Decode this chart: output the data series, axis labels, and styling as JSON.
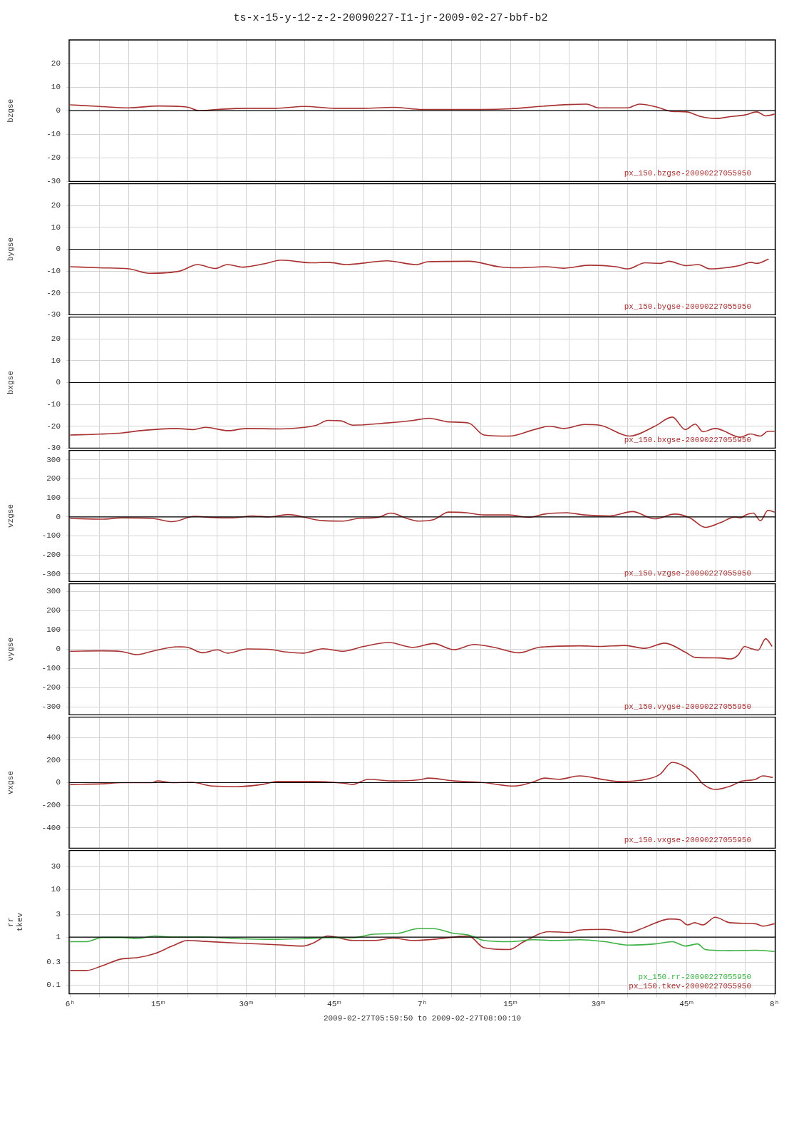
{
  "chart_data": [
    {
      "type": "line",
      "title": "ts-x-15-y-12-z-2-20090227-I1-jr-2009-02-27-bbf-b2",
      "ylabel": "bzgse",
      "xlim": [
        "2009-02-27T05:59:50",
        "2009-02-27T08:00:10"
      ],
      "ylim": [
        -30,
        30
      ],
      "yticks": [
        -30,
        -20,
        -10,
        0,
        10,
        20
      ],
      "grid": true,
      "legend": "bottom right",
      "tick_labels": "y",
      "ref_lines": [
        {
          "axis": "y",
          "value": 0,
          "color": "#000000"
        }
      ],
      "xticks": [
        {
          "value": "2009-02-27T06:00",
          "label": null
        },
        {
          "value": "2009-02-27T06:05",
          "label": null
        },
        {
          "value": "2009-02-27T06:10",
          "label": null
        },
        {
          "value": "2009-02-27T06:15",
          "label": null
        },
        {
          "value": "2009-02-27T06:20",
          "label": null
        },
        {
          "value": "2009-02-27T06:25",
          "label": null
        },
        {
          "value": "2009-02-27T06:30",
          "label": null
        },
        {
          "value": "2009-02-27T06:35",
          "label": null
        },
        {
          "value": "2009-02-27T06:40",
          "label": null
        },
        {
          "value": "2009-02-27T06:45",
          "label": null
        },
        {
          "value": "2009-02-27T06:50",
          "label": null
        },
        {
          "value": "2009-02-27T06:55",
          "label": null
        },
        {
          "value": "2009-02-27T07:00",
          "label": null
        },
        {
          "value": "2009-02-27T07:05",
          "label": null
        },
        {
          "value": "2009-02-27T07:10",
          "label": null
        },
        {
          "value": "2009-02-27T07:15",
          "label": null
        },
        {
          "value": "2009-02-27T07:20",
          "label": null
        },
        {
          "value": "2009-02-27T07:25",
          "label": null
        },
        {
          "value": "2009-02-27T07:30",
          "label": null
        },
        {
          "value": "2009-02-27T07:35",
          "label": null
        },
        {
          "value": "2009-02-27T07:40",
          "label": null
        },
        {
          "value": "2009-02-27T07:45",
          "label": null
        },
        {
          "value": "2009-02-27T07:50",
          "label": null
        },
        {
          "value": "2009-02-27T07:55",
          "label": null
        },
        {
          "value": "2009-02-27T08:00",
          "label": null
        }
      ],
      "series": [
        {
          "name": "px_150.bzgse-20090227055950",
          "color": "#a83232",
          "x": [
            "2009-02-27T06:00",
            "2009-02-27T06:05",
            "2009-02-27T06:10",
            "2009-02-27T06:15",
            "2009-02-27T06:20",
            "2009-02-27T06:22",
            "2009-02-27T06:25",
            "2009-02-27T06:30",
            "2009-02-27T06:35",
            "2009-02-27T06:40",
            "2009-02-27T06:45",
            "2009-02-27T06:50",
            "2009-02-27T06:55",
            "2009-02-27T07:00",
            "2009-02-27T07:05",
            "2009-02-27T07:10",
            "2009-02-27T07:15",
            "2009-02-27T07:20",
            "2009-02-27T07:25",
            "2009-02-27T07:28",
            "2009-02-27T07:30",
            "2009-02-27T07:35",
            "2009-02-27T07:37",
            "2009-02-27T07:40",
            "2009-02-27T07:42:30",
            "2009-02-27T07:45",
            "2009-02-27T07:47:30",
            "2009-02-27T07:50",
            "2009-02-27T07:52:30",
            "2009-02-27T07:55",
            "2009-02-27T07:57",
            "2009-02-27T07:58:30",
            "2009-02-27T08:00"
          ],
          "values": [
            2.5,
            1.8,
            1.2,
            2,
            1.5,
            0,
            0.5,
            1,
            1,
            1.8,
            1,
            1,
            1.4,
            0.5,
            0.5,
            0.5,
            0.8,
            1.8,
            2.6,
            2.8,
            1.2,
            1.2,
            2.8,
            1.5,
            -0.3,
            -0.5,
            -2.5,
            -3.3,
            -2.5,
            -1.8,
            -0.5,
            -2.2,
            -1.5
          ]
        }
      ]
    },
    {
      "type": "line",
      "ylabel": "bygse",
      "xlim": [
        "2009-02-27T05:59:50",
        "2009-02-27T08:00:10"
      ],
      "ylim": [
        -30,
        30
      ],
      "yticks": [
        -30,
        -20,
        -10,
        0,
        10,
        20
      ],
      "grid": true,
      "legend": "bottom right",
      "tick_labels": "y",
      "ref_lines": [
        {
          "axis": "y",
          "value": 0,
          "color": "#000000"
        }
      ],
      "xticks": [
        {
          "value": "2009-02-27T06:00",
          "label": null
        },
        {
          "value": "2009-02-27T06:05",
          "label": null
        },
        {
          "value": "2009-02-27T06:10",
          "label": null
        },
        {
          "value": "2009-02-27T06:15",
          "label": null
        },
        {
          "value": "2009-02-27T06:20",
          "label": null
        },
        {
          "value": "2009-02-27T06:25",
          "label": null
        },
        {
          "value": "2009-02-27T06:30",
          "label": null
        },
        {
          "value": "2009-02-27T06:35",
          "label": null
        },
        {
          "value": "2009-02-27T06:40",
          "label": null
        },
        {
          "value": "2009-02-27T06:45",
          "label": null
        },
        {
          "value": "2009-02-27T06:50",
          "label": null
        },
        {
          "value": "2009-02-27T06:55",
          "label": null
        },
        {
          "value": "2009-02-27T07:00",
          "label": null
        },
        {
          "value": "2009-02-27T07:05",
          "label": null
        },
        {
          "value": "2009-02-27T07:10",
          "label": null
        },
        {
          "value": "2009-02-27T07:15",
          "label": null
        },
        {
          "value": "2009-02-27T07:20",
          "label": null
        },
        {
          "value": "2009-02-27T07:25",
          "label": null
        },
        {
          "value": "2009-02-27T07:30",
          "label": null
        },
        {
          "value": "2009-02-27T07:35",
          "label": null
        },
        {
          "value": "2009-02-27T07:40",
          "label": null
        },
        {
          "value": "2009-02-27T07:45",
          "label": null
        },
        {
          "value": "2009-02-27T07:50",
          "label": null
        },
        {
          "value": "2009-02-27T07:55",
          "label": null
        },
        {
          "value": "2009-02-27T08:00",
          "label": null
        }
      ],
      "series": [
        {
          "name": "px_150.bygse-20090227055950",
          "color": "#a83232",
          "x": [
            "2009-02-27T06:00",
            "2009-02-27T06:05",
            "2009-02-27T06:10",
            "2009-02-27T06:13:30",
            "2009-02-27T06:18:42",
            "2009-02-27T06:21:42",
            "2009-02-27T06:24:42",
            "2009-02-27T06:26:48",
            "2009-02-27T06:29:24",
            "2009-02-27T06:33",
            "2009-02-27T06:36",
            "2009-02-27T06:41",
            "2009-02-27T06:44",
            "2009-02-27T06:47",
            "2009-02-27T06:54",
            "2009-02-27T06:59",
            "2009-02-27T07:01",
            "2009-02-27T07:08",
            "2009-02-27T07:13",
            "2009-02-27T07:16:30",
            "2009-02-27T07:21",
            "2009-02-27T07:24",
            "2009-02-27T07:28:30",
            "2009-02-27T07:33",
            "2009-02-27T07:35",
            "2009-02-27T07:38",
            "2009-02-27T07:40:30",
            "2009-02-27T07:42",
            "2009-02-27T07:45",
            "2009-02-27T07:47",
            "2009-02-27T07:49",
            "2009-02-27T07:51:36",
            "2009-02-27T07:54",
            "2009-02-27T07:56",
            "2009-02-27T07:57",
            "2009-02-27T07:59"
          ],
          "values": [
            -8,
            -8.5,
            -9,
            -11,
            -10,
            -7,
            -8.8,
            -7,
            -8.2,
            -6.7,
            -5,
            -6.2,
            -6,
            -7,
            -5.3,
            -7,
            -5.7,
            -5.5,
            -8,
            -8.5,
            -8,
            -8.7,
            -7.3,
            -8,
            -9,
            -6.2,
            -6.5,
            -5.5,
            -7.5,
            -7,
            -9,
            -8.5,
            -7.5,
            -6,
            -6.5,
            -4.5
          ]
        }
      ]
    },
    {
      "type": "line",
      "ylabel": "bxgse",
      "xlim": [
        "2009-02-27T05:59:50",
        "2009-02-27T08:00:10"
      ],
      "ylim": [
        -30,
        30
      ],
      "yticks": [
        -30,
        -20,
        -10,
        0,
        10,
        20
      ],
      "grid": true,
      "legend": "bottom right",
      "tick_labels": "y",
      "ref_lines": [
        {
          "axis": "y",
          "value": 0,
          "color": "#000000"
        }
      ],
      "xticks": [
        {
          "value": "2009-02-27T06:00",
          "label": null
        },
        {
          "value": "2009-02-27T06:05",
          "label": null
        },
        {
          "value": "2009-02-27T06:10",
          "label": null
        },
        {
          "value": "2009-02-27T06:15",
          "label": null
        },
        {
          "value": "2009-02-27T06:20",
          "label": null
        },
        {
          "value": "2009-02-27T06:25",
          "label": null
        },
        {
          "value": "2009-02-27T06:30",
          "label": null
        },
        {
          "value": "2009-02-27T06:35",
          "label": null
        },
        {
          "value": "2009-02-27T06:40",
          "label": null
        },
        {
          "value": "2009-02-27T06:45",
          "label": null
        },
        {
          "value": "2009-02-27T06:50",
          "label": null
        },
        {
          "value": "2009-02-27T06:55",
          "label": null
        },
        {
          "value": "2009-02-27T07:00",
          "label": null
        },
        {
          "value": "2009-02-27T07:05",
          "label": null
        },
        {
          "value": "2009-02-27T07:10",
          "label": null
        },
        {
          "value": "2009-02-27T07:15",
          "label": null
        },
        {
          "value": "2009-02-27T07:20",
          "label": null
        },
        {
          "value": "2009-02-27T07:25",
          "label": null
        },
        {
          "value": "2009-02-27T07:30",
          "label": null
        },
        {
          "value": "2009-02-27T07:35",
          "label": null
        },
        {
          "value": "2009-02-27T07:40",
          "label": null
        },
        {
          "value": "2009-02-27T07:45",
          "label": null
        },
        {
          "value": "2009-02-27T07:50",
          "label": null
        },
        {
          "value": "2009-02-27T07:55",
          "label": null
        },
        {
          "value": "2009-02-27T08:00",
          "label": null
        }
      ],
      "series": [
        {
          "name": "px_150.bxgse-20090227055950",
          "color": "#a83232",
          "x": [
            "2009-02-27T06:00",
            "2009-02-27T06:05",
            "2009-02-27T06:09",
            "2009-02-27T06:12",
            "2009-02-27T06:18",
            "2009-02-27T06:21",
            "2009-02-27T06:23",
            "2009-02-27T06:27",
            "2009-02-27T06:30",
            "2009-02-27T06:36",
            "2009-02-27T06:40",
            "2009-02-27T06:42",
            "2009-02-27T06:43:54",
            "2009-02-27T06:46:06",
            "2009-02-27T06:48:12",
            "2009-02-27T06:54",
            "2009-02-27T06:58:30",
            "2009-02-27T07:01:06",
            "2009-02-27T07:04:30",
            "2009-02-27T07:07:54",
            "2009-02-27T07:10:30",
            "2009-02-27T07:14:48",
            "2009-02-27T07:19:06",
            "2009-02-27T07:21:36",
            "2009-02-27T07:24:12",
            "2009-02-27T07:27:36",
            "2009-02-27T07:30:12",
            "2009-02-27T07:35:18",
            "2009-02-27T07:39:36",
            "2009-02-27T07:42:36",
            "2009-02-27T07:44:48",
            "2009-02-27T07:46:30",
            "2009-02-27T07:47:48",
            "2009-02-27T07:49:54",
            "2009-02-27T07:54:12",
            "2009-02-27T07:55:54",
            "2009-02-27T07:57:36",
            "2009-02-27T07:58:54",
            "2009-02-27T08:00"
          ],
          "values": [
            -24,
            -23.6,
            -23,
            -22,
            -21,
            -21.5,
            -20.5,
            -22,
            -21,
            -21.2,
            -20.5,
            -19.5,
            -17.3,
            -17.5,
            -19.5,
            -18.5,
            -17.3,
            -16.3,
            -18,
            -18.5,
            -24,
            -24.5,
            -21.5,
            -20,
            -21,
            -19.2,
            -19.5,
            -24.5,
            -20,
            -15.8,
            -21.5,
            -19,
            -22.5,
            -21,
            -25,
            -23.5,
            -24.5,
            -22.3,
            -22.3
          ]
        }
      ]
    },
    {
      "type": "line",
      "ylabel": "vzgse",
      "xlim": [
        "2009-02-27T05:59:50",
        "2009-02-27T08:00:10"
      ],
      "ylim": [
        -340,
        350
      ],
      "yticks": [
        -300,
        -200,
        -100,
        0,
        100,
        200,
        300
      ],
      "grid": true,
      "legend": "bottom right",
      "tick_labels": "y",
      "ref_lines": [
        {
          "axis": "y",
          "value": 0,
          "color": "#000000"
        }
      ],
      "xticks": [
        {
          "value": "2009-02-27T06:00",
          "label": null
        },
        {
          "value": "2009-02-27T06:05",
          "label": null
        },
        {
          "value": "2009-02-27T06:10",
          "label": null
        },
        {
          "value": "2009-02-27T06:15",
          "label": null
        },
        {
          "value": "2009-02-27T06:20",
          "label": null
        },
        {
          "value": "2009-02-27T06:25",
          "label": null
        },
        {
          "value": "2009-02-27T06:30",
          "label": null
        },
        {
          "value": "2009-02-27T06:35",
          "label": null
        },
        {
          "value": "2009-02-27T06:40",
          "label": null
        },
        {
          "value": "2009-02-27T06:45",
          "label": null
        },
        {
          "value": "2009-02-27T06:50",
          "label": null
        },
        {
          "value": "2009-02-27T06:55",
          "label": null
        },
        {
          "value": "2009-02-27T07:00",
          "label": null
        },
        {
          "value": "2009-02-27T07:05",
          "label": null
        },
        {
          "value": "2009-02-27T07:10",
          "label": null
        },
        {
          "value": "2009-02-27T07:15",
          "label": null
        },
        {
          "value": "2009-02-27T07:20",
          "label": null
        },
        {
          "value": "2009-02-27T07:25",
          "label": null
        },
        {
          "value": "2009-02-27T07:30",
          "label": null
        },
        {
          "value": "2009-02-27T07:35",
          "label": null
        },
        {
          "value": "2009-02-27T07:40",
          "label": null
        },
        {
          "value": "2009-02-27T07:45",
          "label": null
        },
        {
          "value": "2009-02-27T07:50",
          "label": null
        },
        {
          "value": "2009-02-27T07:55",
          "label": null
        },
        {
          "value": "2009-02-27T08:00",
          "label": null
        }
      ],
      "series": [
        {
          "name": "px_150.vzgse-20090227055950",
          "color": "#a83232",
          "x": [
            "2009-02-27T06:00",
            "2009-02-27T06:05:24",
            "2009-02-27T06:08:48",
            "2009-02-27T06:14",
            "2009-02-27T06:17:24",
            "2009-02-27T06:21:12",
            "2009-02-27T06:24:12",
            "2009-02-27T06:27:42",
            "2009-02-27T06:31:06",
            "2009-02-27T06:33:42",
            "2009-02-27T06:37:06",
            "2009-02-27T06:43:06",
            "2009-02-27T06:46:30",
            "2009-02-27T06:49:06",
            "2009-02-27T06:52:30",
            "2009-02-27T06:54:36",
            "2009-02-27T06:57:36",
            "2009-02-27T06:59:24",
            "2009-02-27T07:01:54",
            "2009-02-27T07:04:30",
            "2009-02-27T07:07:30",
            "2009-02-27T07:10:30",
            "2009-02-27T07:14:48",
            "2009-02-27T07:18:12",
            "2009-02-27T07:20:48",
            "2009-02-27T07:24:36",
            "2009-02-27T07:27:36",
            "2009-02-27T07:31:54",
            "2009-02-27T07:35:48",
            "2009-02-27T07:39:36",
            "2009-02-27T07:43",
            "2009-02-27T07:45:36",
            "2009-02-27T07:48:12",
            "2009-02-27T07:50:48",
            "2009-02-27T07:53:18",
            "2009-02-27T07:54:12",
            "2009-02-27T07:55:06",
            "2009-02-27T07:56:24",
            "2009-02-27T07:57:36",
            "2009-02-27T07:58:54",
            "2009-02-27T08:00"
          ],
          "values": [
            -8,
            -12,
            -5,
            -8,
            -25,
            3,
            -3,
            -5,
            5,
            0,
            12,
            -20,
            -22,
            -8,
            -2,
            20,
            -10,
            -22,
            -15,
            25,
            22,
            10,
            10,
            -2,
            15,
            22,
            10,
            5,
            28,
            -10,
            15,
            -5,
            -55,
            -30,
            0,
            -5,
            10,
            20,
            -20,
            35,
            25
          ]
        }
      ]
    },
    {
      "type": "line",
      "ylabel": "vygse",
      "xlim": [
        "2009-02-27T05:59:50",
        "2009-02-27T08:00:10"
      ],
      "ylim": [
        -340,
        340
      ],
      "yticks": [
        -300,
        -200,
        -100,
        0,
        100,
        200,
        300
      ],
      "grid": true,
      "legend": "bottom right",
      "tick_labels": "y",
      "xticks": [
        {
          "value": "2009-02-27T06:00",
          "label": null
        },
        {
          "value": "2009-02-27T06:05",
          "label": null
        },
        {
          "value": "2009-02-27T06:10",
          "label": null
        },
        {
          "value": "2009-02-27T06:15",
          "label": null
        },
        {
          "value": "2009-02-27T06:20",
          "label": null
        },
        {
          "value": "2009-02-27T06:25",
          "label": null
        },
        {
          "value": "2009-02-27T06:30",
          "label": null
        },
        {
          "value": "2009-02-27T06:35",
          "label": null
        },
        {
          "value": "2009-02-27T06:40",
          "label": null
        },
        {
          "value": "2009-02-27T06:45",
          "label": null
        },
        {
          "value": "2009-02-27T06:50",
          "label": null
        },
        {
          "value": "2009-02-27T06:55",
          "label": null
        },
        {
          "value": "2009-02-27T07:00",
          "label": null
        },
        {
          "value": "2009-02-27T07:05",
          "label": null
        },
        {
          "value": "2009-02-27T07:10",
          "label": null
        },
        {
          "value": "2009-02-27T07:15",
          "label": null
        },
        {
          "value": "2009-02-27T07:20",
          "label": null
        },
        {
          "value": "2009-02-27T07:25",
          "label": null
        },
        {
          "value": "2009-02-27T07:30",
          "label": null
        },
        {
          "value": "2009-02-27T07:35",
          "label": null
        },
        {
          "value": "2009-02-27T07:40",
          "label": null
        },
        {
          "value": "2009-02-27T07:45",
          "label": null
        },
        {
          "value": "2009-02-27T07:50",
          "label": null
        },
        {
          "value": "2009-02-27T07:55",
          "label": null
        },
        {
          "value": "2009-02-27T08:00",
          "label": null
        }
      ],
      "series": [
        {
          "name": "px_150.vygse-20090227055950",
          "color": "#a83232",
          "x": [
            "2009-02-27T06:00",
            "2009-02-27T06:05:24",
            "2009-02-27T06:08:48",
            "2009-02-27T06:11:24",
            "2009-02-27T06:14",
            "2009-02-27T06:18:18",
            "2009-02-27T06:20",
            "2009-02-27T06:22:36",
            "2009-02-27T06:25:06",
            "2009-02-27T06:26:48",
            "2009-02-27T06:30:12",
            "2009-02-27T06:33:42",
            "2009-02-27T06:37:06",
            "2009-02-27T06:39:42",
            "2009-02-27T06:43:06",
            "2009-02-27T06:46:30",
            "2009-02-27T06:50",
            "2009-02-27T06:54:18",
            "2009-02-27T06:58:30",
            "2009-02-27T07:01:54",
            "2009-02-27T07:05:24",
            "2009-02-27T07:08:48",
            "2009-02-27T07:12:12",
            "2009-02-27T07:16:30",
            "2009-02-27T07:19:54",
            "2009-02-27T07:26:48",
            "2009-02-27T07:30:12",
            "2009-02-27T07:34:30",
            "2009-02-27T07:37:54",
            "2009-02-27T07:41:18",
            "2009-02-27T07:44:48",
            "2009-02-27T07:46:30",
            "2009-02-27T07:50:48",
            "2009-02-27T07:52:30",
            "2009-02-27T07:53:48",
            "2009-02-27T07:54:54",
            "2009-02-27T07:55:54",
            "2009-02-27T07:57:12",
            "2009-02-27T07:58:30",
            "2009-02-27T07:59:36"
          ],
          "values": [
            -10,
            -8,
            -12,
            -28,
            -10,
            13,
            10,
            -18,
            -3,
            -20,
            2,
            0,
            -15,
            -20,
            3,
            -10,
            15,
            35,
            10,
            30,
            -2,
            25,
            10,
            -18,
            10,
            18,
            15,
            20,
            5,
            32,
            -15,
            -42,
            -45,
            -50,
            -30,
            15,
            5,
            -5,
            55,
            15
          ]
        }
      ]
    },
    {
      "type": "line",
      "ylabel": "vxgse",
      "xlim": [
        "2009-02-27T05:59:50",
        "2009-02-27T08:00:10"
      ],
      "ylim": [
        -580,
        580
      ],
      "yticks": [
        -400,
        -200,
        0,
        200,
        400
      ],
      "grid": true,
      "legend": "bottom right",
      "tick_labels": "y",
      "ref_lines": [
        {
          "axis": "y",
          "value": 0,
          "color": "#000000"
        }
      ],
      "xticks": [
        {
          "value": "2009-02-27T06:00",
          "label": null
        },
        {
          "value": "2009-02-27T06:05",
          "label": null
        },
        {
          "value": "2009-02-27T06:10",
          "label": null
        },
        {
          "value": "2009-02-27T06:15",
          "label": null
        },
        {
          "value": "2009-02-27T06:20",
          "label": null
        },
        {
          "value": "2009-02-27T06:25",
          "label": null
        },
        {
          "value": "2009-02-27T06:30",
          "label": null
        },
        {
          "value": "2009-02-27T06:35",
          "label": null
        },
        {
          "value": "2009-02-27T06:40",
          "label": null
        },
        {
          "value": "2009-02-27T06:45",
          "label": null
        },
        {
          "value": "2009-02-27T06:50",
          "label": null
        },
        {
          "value": "2009-02-27T06:55",
          "label": null
        },
        {
          "value": "2009-02-27T07:00",
          "label": null
        },
        {
          "value": "2009-02-27T07:05",
          "label": null
        },
        {
          "value": "2009-02-27T07:10",
          "label": null
        },
        {
          "value": "2009-02-27T07:15",
          "label": null
        },
        {
          "value": "2009-02-27T07:20",
          "label": null
        },
        {
          "value": "2009-02-27T07:25",
          "label": null
        },
        {
          "value": "2009-02-27T07:30",
          "label": null
        },
        {
          "value": "2009-02-27T07:35",
          "label": null
        },
        {
          "value": "2009-02-27T07:40",
          "label": null
        },
        {
          "value": "2009-02-27T07:45",
          "label": null
        },
        {
          "value": "2009-02-27T07:50",
          "label": null
        },
        {
          "value": "2009-02-27T07:55",
          "label": null
        },
        {
          "value": "2009-02-27T08:00",
          "label": null
        }
      ],
      "series": [
        {
          "name": "px_150.vxgse-20090227055950",
          "color": "#a83232",
          "x": [
            "2009-02-27T06:00",
            "2009-02-27T06:05:24",
            "2009-02-27T06:08:48",
            "2009-02-27T06:14",
            "2009-02-27T06:14:54",
            "2009-02-27T06:17:24",
            "2009-02-27T06:20:48",
            "2009-02-27T06:24:12",
            "2009-02-27T06:28:30",
            "2009-02-27T06:32:48",
            "2009-02-27T06:35:24",
            "2009-02-27T06:41:24",
            "2009-02-27T06:46:30",
            "2009-02-27T06:48:12",
            "2009-02-27T06:50:48",
            "2009-02-27T06:55:06",
            "2009-02-27T06:59:24",
            "2009-02-27T07:01:06",
            "2009-02-27T07:05:24",
            "2009-02-27T07:10:30",
            "2009-02-27T07:15:36",
            "2009-02-27T07:19:06",
            "2009-02-27T07:20:48",
            "2009-02-27T07:23:18",
            "2009-02-27T07:26:48",
            "2009-02-27T07:31:06",
            "2009-02-27T07:33:36",
            "2009-02-27T07:37",
            "2009-02-27T07:40:24",
            "2009-02-27T07:42:36",
            "2009-02-27T07:44:48",
            "2009-02-27T07:46:30",
            "2009-02-27T07:47:48",
            "2009-02-27T07:49:54",
            "2009-02-27T07:52:30",
            "2009-02-27T07:54:12",
            "2009-02-27T07:56:48",
            "2009-02-27T07:58",
            "2009-02-27T07:59:42"
          ],
          "values": [
            -15,
            -10,
            0,
            0,
            15,
            0,
            3,
            -30,
            -35,
            -15,
            10,
            10,
            -5,
            -15,
            30,
            15,
            25,
            40,
            15,
            0,
            -30,
            10,
            40,
            30,
            60,
            25,
            10,
            20,
            70,
            180,
            140,
            70,
            -10,
            -60,
            -30,
            10,
            30,
            60,
            45
          ]
        }
      ]
    },
    {
      "type": "line",
      "ylabel": "rr\ntkev",
      "xlabel": "2009-02-27T05:59:50 to 2009-02-27T08:00:10",
      "log": "y",
      "xlim": [
        "2009-02-27T05:59:50",
        "2009-02-27T08:00:10"
      ],
      "ylim": [
        0.065,
        65
      ],
      "yticks": [
        0.1,
        0.3,
        1,
        3,
        10,
        30
      ],
      "grid": true,
      "legend": "bottom right",
      "ref_lines": [
        {
          "axis": "y",
          "value": 1,
          "color": "#000000"
        }
      ],
      "xticks": [
        {
          "value": "2009-02-27T06:00",
          "label": "6ʰ"
        },
        {
          "value": "2009-02-27T06:05",
          "label": null
        },
        {
          "value": "2009-02-27T06:10",
          "label": null
        },
        {
          "value": "2009-02-27T06:15",
          "label": "15ᵐ"
        },
        {
          "value": "2009-02-27T06:20",
          "label": null
        },
        {
          "value": "2009-02-27T06:25",
          "label": null
        },
        {
          "value": "2009-02-27T06:30",
          "label": "30ᵐ"
        },
        {
          "value": "2009-02-27T06:35",
          "label": null
        },
        {
          "value": "2009-02-27T06:40",
          "label": null
        },
        {
          "value": "2009-02-27T06:45",
          "label": "45ᵐ"
        },
        {
          "value": "2009-02-27T06:50",
          "label": null
        },
        {
          "value": "2009-02-27T06:55",
          "label": null
        },
        {
          "value": "2009-02-27T07:00",
          "label": "7ʰ"
        },
        {
          "value": "2009-02-27T07:05",
          "label": null
        },
        {
          "value": "2009-02-27T07:10",
          "label": null
        },
        {
          "value": "2009-02-27T07:15",
          "label": "15ᵐ"
        },
        {
          "value": "2009-02-27T07:20",
          "label": null
        },
        {
          "value": "2009-02-27T07:25",
          "label": null
        },
        {
          "value": "2009-02-27T07:30",
          "label": "30ᵐ"
        },
        {
          "value": "2009-02-27T07:35",
          "label": null
        },
        {
          "value": "2009-02-27T07:40",
          "label": null
        },
        {
          "value": "2009-02-27T07:45",
          "label": "45ᵐ"
        },
        {
          "value": "2009-02-27T07:50",
          "label": null
        },
        {
          "value": "2009-02-27T07:55",
          "label": null
        },
        {
          "value": "2009-02-27T08:00",
          "label": "8ʰ"
        }
      ],
      "series": [
        {
          "name": "px_150.rr-20090227055950",
          "color": "#3cb043",
          "x": [
            "2009-02-27T06:00",
            "2009-02-27T06:02:48",
            "2009-02-27T06:05:24",
            "2009-02-27T06:08:48",
            "2009-02-27T06:11:24",
            "2009-02-27T06:14:24",
            "2009-02-27T06:17:24",
            "2009-02-27T06:22:30",
            "2009-02-27T06:28:30",
            "2009-02-27T06:34:30",
            "2009-02-27T06:39:42",
            "2009-02-27T06:43:54",
            "2009-02-27T06:48:12",
            "2009-02-27T06:51:42",
            "2009-02-27T06:55:54",
            "2009-02-27T06:59:18",
            "2009-02-27T07:01:54",
            "2009-02-27T07:05:18",
            "2009-02-27T07:07:54",
            "2009-02-27T07:10:30",
            "2009-02-27T07:14:48",
            "2009-02-27T07:19:06",
            "2009-02-27T07:22:30",
            "2009-02-27T07:26:48",
            "2009-02-27T07:31:06",
            "2009-02-27T07:35:18",
            "2009-02-27T07:39:36",
            "2009-02-27T07:42:36",
            "2009-02-27T07:44:48",
            "2009-02-27T07:46:54",
            "2009-02-27T07:48:12",
            "2009-02-27T07:52:24",
            "2009-02-27T07:56:48",
            "2009-02-27T08:00"
          ],
          "values": [
            0.8,
            0.8,
            0.98,
            0.98,
            0.93,
            1.05,
            1,
            1,
            0.93,
            0.9,
            0.93,
            0.97,
            0.97,
            1.15,
            1.2,
            1.5,
            1.5,
            1.2,
            1.1,
            0.85,
            0.8,
            0.88,
            0.85,
            0.88,
            0.8,
            0.68,
            0.72,
            0.8,
            0.65,
            0.72,
            0.55,
            0.52,
            0.53,
            0.5
          ]
        },
        {
          "name": "px_150.tkev-20090227055950",
          "color": "#a83232",
          "x": [
            "2009-02-27T06:00",
            "2009-02-27T06:02:48",
            "2009-02-27T06:05:24",
            "2009-02-27T06:08:48",
            "2009-02-27T06:11:24",
            "2009-02-27T06:14:24",
            "2009-02-27T06:17:24",
            "2009-02-27T06:20",
            "2009-02-27T06:22:30",
            "2009-02-27T06:28:30",
            "2009-02-27T06:34:30",
            "2009-02-27T06:39:42",
            "2009-02-27T06:41:24",
            "2009-02-27T06:43:54",
            "2009-02-27T06:48:12",
            "2009-02-27T06:51:42",
            "2009-02-27T06:55:06",
            "2009-02-27T06:58:30",
            "2009-02-27T07:01:54",
            "2009-02-27T07:07:54",
            "2009-02-27T07:10:30",
            "2009-02-27T07:14:48",
            "2009-02-27T07:17:18",
            "2009-02-27T07:21:36",
            "2009-02-27T07:25:06",
            "2009-02-27T07:26:48",
            "2009-02-27T07:31:06",
            "2009-02-27T07:35:18",
            "2009-02-27T07:37:54",
            "2009-02-27T07:42:12",
            "2009-02-27T07:43:54",
            "2009-02-27T07:45:12",
            "2009-02-27T07:46:24",
            "2009-02-27T07:47:48",
            "2009-02-27T07:49:54",
            "2009-02-27T07:52:24",
            "2009-02-27T07:56:48",
            "2009-02-27T07:58",
            "2009-02-27T08:00"
          ],
          "values": [
            0.2,
            0.2,
            0.25,
            0.35,
            0.37,
            0.45,
            0.65,
            0.85,
            0.82,
            0.75,
            0.7,
            0.65,
            0.75,
            1.05,
            0.85,
            0.85,
            0.95,
            0.85,
            0.9,
            1.05,
            0.6,
            0.55,
            0.8,
            1.3,
            1.25,
            1.4,
            1.45,
            1.25,
            1.6,
            2.4,
            2.3,
            1.8,
            2,
            1.8,
            2.6,
            2,
            1.9,
            1.7,
            1.9
          ]
        }
      ]
    }
  ]
}
